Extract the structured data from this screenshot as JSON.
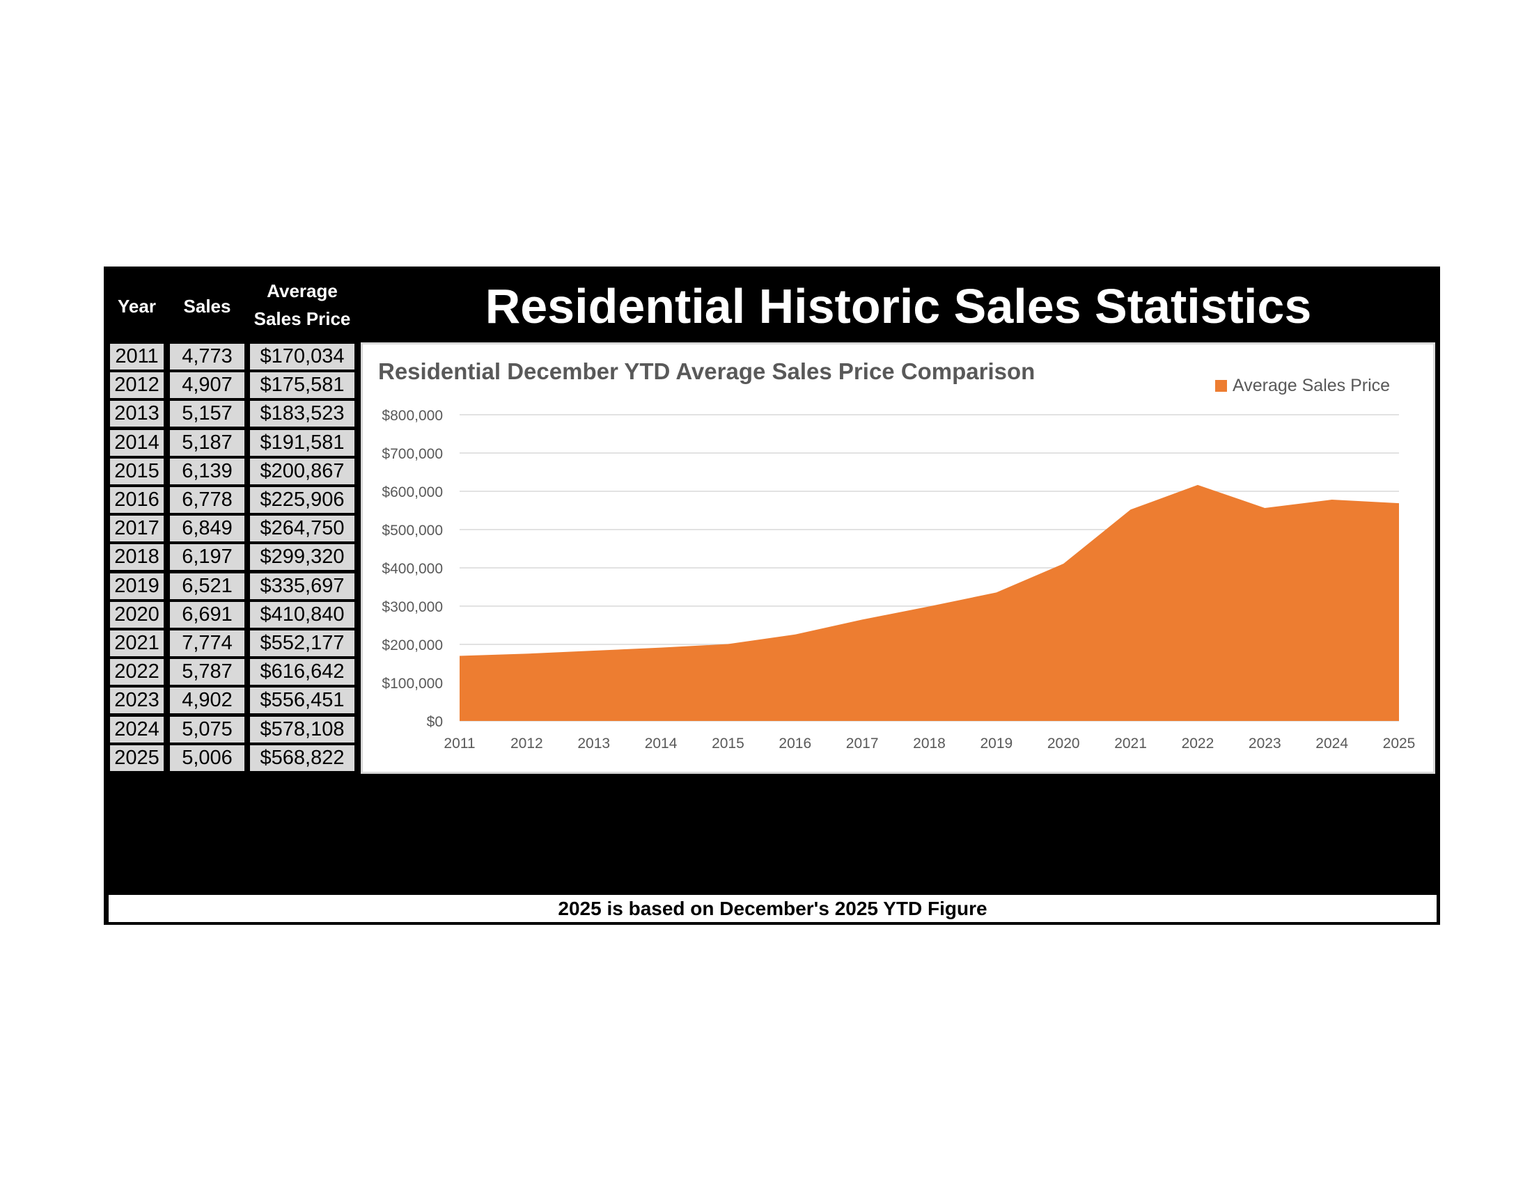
{
  "header": {
    "title": "Residential Historic Sales Statistics"
  },
  "table": {
    "columns": [
      "Year",
      "Sales",
      "Average",
      "Sales Price"
    ],
    "rows": [
      [
        "2011",
        "4,773",
        "$170,034"
      ],
      [
        "2012",
        "4,907",
        "$175,581"
      ],
      [
        "2013",
        "5,157",
        "$183,523"
      ],
      [
        "2014",
        "5,187",
        "$191,581"
      ],
      [
        "2015",
        "6,139",
        "$200,867"
      ],
      [
        "2016",
        "6,778",
        "$225,906"
      ],
      [
        "2017",
        "6,849",
        "$264,750"
      ],
      [
        "2018",
        "6,197",
        "$299,320"
      ],
      [
        "2019",
        "6,521",
        "$335,697"
      ],
      [
        "2020",
        "6,691",
        "$410,840"
      ],
      [
        "2021",
        "7,774",
        "$552,177"
      ],
      [
        "2022",
        "5,787",
        "$616,642"
      ],
      [
        "2023",
        "4,902",
        "$556,451"
      ],
      [
        "2024",
        "5,075",
        "$578,108"
      ],
      [
        "2025",
        "5,006",
        "$568,822"
      ]
    ]
  },
  "footer": {
    "note": "2025 is based on December's 2025 YTD Figure"
  },
  "chart_data": {
    "type": "area",
    "title": "Residential December YTD Average Sales Price Comparison",
    "x": [
      2011,
      2012,
      2013,
      2014,
      2015,
      2016,
      2017,
      2018,
      2019,
      2020,
      2021,
      2022,
      2023,
      2024,
      2025
    ],
    "series": [
      {
        "name": "Average Sales Price",
        "color": "#ed7d31",
        "values": [
          170034,
          175581,
          183523,
          191581,
          200867,
          225906,
          264750,
          299320,
          335697,
          410840,
          552177,
          616642,
          556451,
          578108,
          568822
        ]
      }
    ],
    "ylim": [
      0,
      800000
    ],
    "yticks": [
      "$0",
      "$100,000",
      "$200,000",
      "$300,000",
      "$400,000",
      "$500,000",
      "$600,000",
      "$700,000",
      "$800,000"
    ],
    "grid": true,
    "legend": "top-right"
  }
}
